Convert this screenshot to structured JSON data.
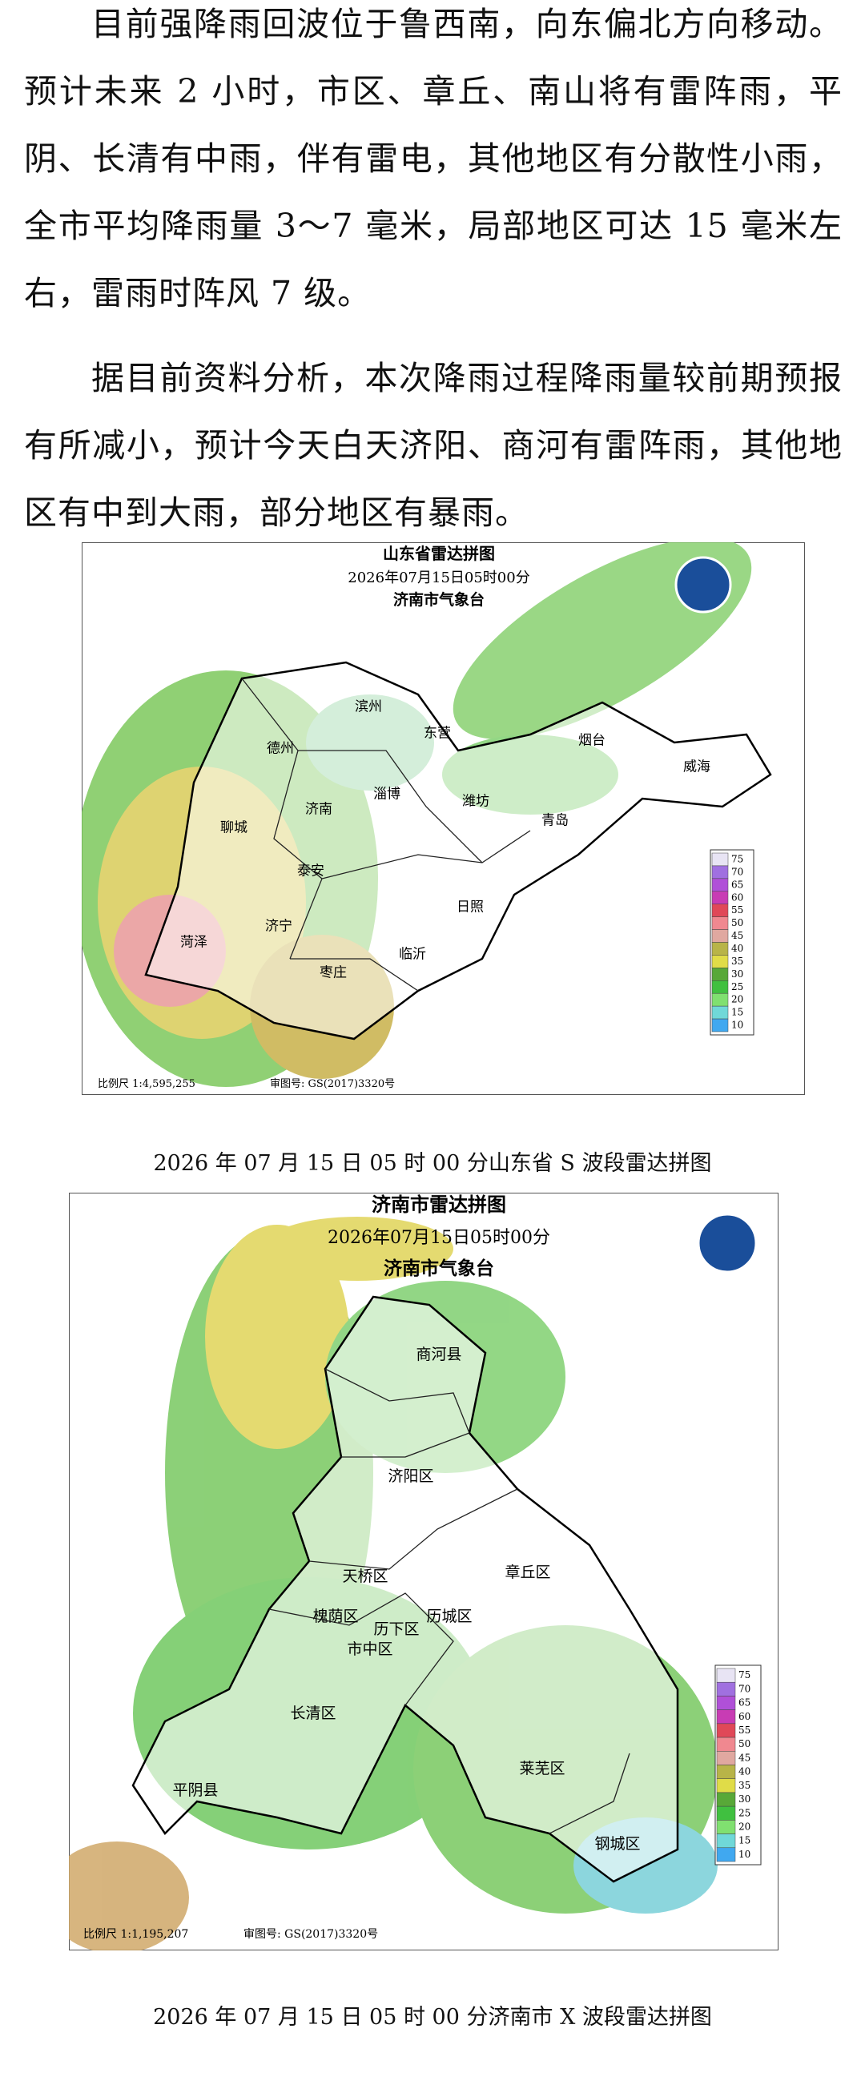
{
  "paragraphs": [
    "目前强降雨回波位于鲁西南，向东偏北方向移动。预计未来 2 小时，市区、章丘、南山将有雷阵雨，平阴、长清有中雨，伴有雷电，其他地区有分散性小雨，全市平均降雨量 3～7 毫米，局部地区可达 15 毫米左右，雷雨时阵风 7 级。",
    "据目前资料分析，本次降雨过程降雨量较前期预报有所减小，预计今天白天济阳、商河有雷阵雨，其他地区有中到大雨，部分地区有暴雨。"
  ],
  "legend": {
    "values": [
      75,
      70,
      65,
      60,
      55,
      50,
      45,
      40,
      35,
      30,
      25,
      20,
      15,
      10
    ],
    "colors": [
      "#e8e4f4",
      "#a070e0",
      "#b050d8",
      "#c83cb4",
      "#e04858",
      "#f08890",
      "#e0a8a0",
      "#b8b448",
      "#e0dc48",
      "#58a838",
      "#40c040",
      "#80e070",
      "#70d8d8",
      "#40a8f0"
    ]
  },
  "figures": [
    {
      "title": "山东省雷达拼图",
      "time": "2026年07月15日05时00分",
      "station": "济南市气象台",
      "labels": [
        "滨州",
        "东营",
        "烟台",
        "威海",
        "德州",
        "淄博",
        "潍坊",
        "济南",
        "聊城",
        "青岛",
        "泰安",
        "日照",
        "菏泽",
        "济宁",
        "临沂",
        "枣庄"
      ],
      "scale": "比例尺 1:4,595,255",
      "approval": "审图号: GS(2017)3320号",
      "caption": "2026 年 07 月 15 日 05 时 00 分山东省 S 波段雷达拼图"
    },
    {
      "title": "济南市雷达拼图",
      "time": "2026年07月15日05时00分",
      "station": "济南市气象台",
      "labels": [
        "商河县",
        "济阳区",
        "天桥区",
        "章丘区",
        "槐荫区",
        "历城区",
        "历下区",
        "市中区",
        "长清区",
        "莱芜区",
        "平阴县",
        "钢城区"
      ],
      "scale": "比例尺 1:1,195,207",
      "approval": "审图号: GS(2017)3320号",
      "caption": "2026 年 07 月 15 日 05 时 00 分济南市 X 波段雷达拼图"
    }
  ]
}
